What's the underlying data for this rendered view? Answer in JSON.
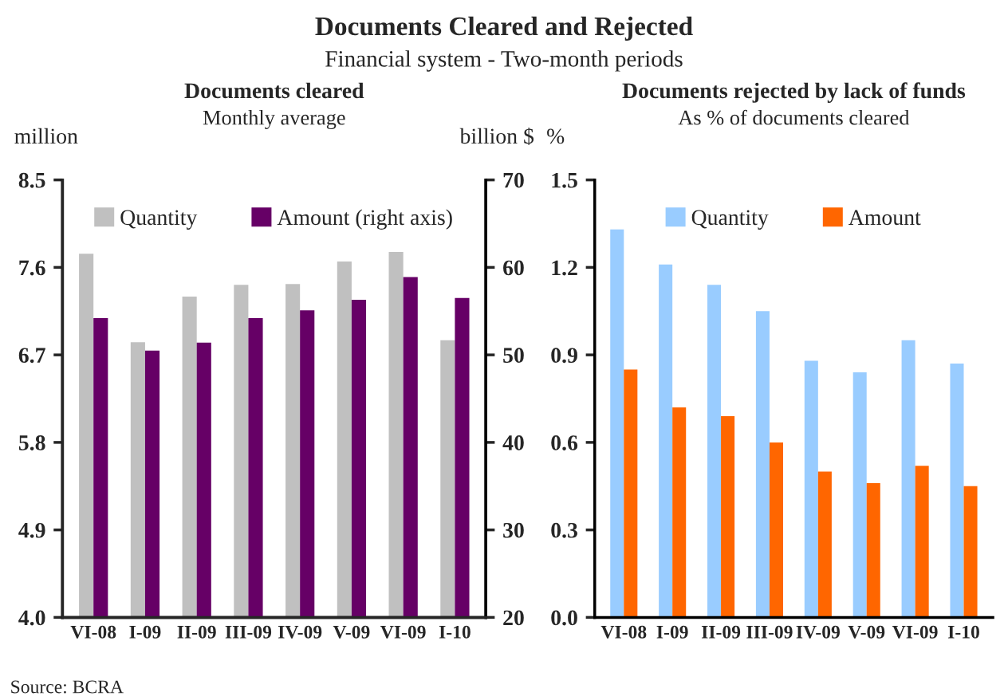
{
  "chart_data": [
    {
      "type": "bar",
      "title": "Documents cleared",
      "subtitle": "Monthly average",
      "ylabel": "million",
      "y2label": "billion $",
      "categories": [
        "VI-08",
        "I-09",
        "II-09",
        "III-09",
        "IV-09",
        "V-09",
        "VI-09",
        "I-10"
      ],
      "series": [
        {
          "name": "Quantity",
          "color": "#c0c0c0",
          "values": [
            7.74,
            6.83,
            7.3,
            7.42,
            7.43,
            7.66,
            7.76,
            6.85
          ]
        },
        {
          "name": "Amount (right axis)",
          "color": "#660066",
          "axis": "y2",
          "values": [
            54.2,
            50.5,
            51.4,
            54.2,
            55.1,
            56.3,
            58.9,
            56.5
          ]
        }
      ],
      "ylim": [
        4.0,
        8.5
      ],
      "yticks": [
        {
          "value": 4.0,
          "label": "4.0"
        },
        4.9,
        5.8,
        6.7,
        7.6,
        8.5
      ],
      "y2lim": [
        20,
        70
      ],
      "y2ticks": [
        20,
        30,
        40,
        50,
        60,
        70
      ],
      "grid": false,
      "legend": "top",
      "annotations": [
        "Documents Cleared and Rejected",
        "Financial system - Two-month periods",
        "Source: BCRA"
      ]
    },
    {
      "type": "bar",
      "title": "Documents rejected by lack of funds",
      "subtitle": "As % of documents cleared",
      "ylabel": "%",
      "categories": [
        "VI-08",
        "I-09",
        "II-09",
        "III-09",
        "IV-09",
        "V-09",
        "VI-09",
        "I-10"
      ],
      "series": [
        {
          "name": "Quantity",
          "color": "#99ccff",
          "values": [
            1.33,
            1.21,
            1.14,
            1.05,
            0.88,
            0.84,
            0.95,
            0.87
          ]
        },
        {
          "name": "Amount",
          "color": "#ff6600",
          "values": [
            0.85,
            0.72,
            0.69,
            0.6,
            0.5,
            0.46,
            0.52,
            0.45
          ]
        }
      ],
      "ylim": [
        0.0,
        1.5
      ],
      "yticks": [
        {
          "value": 0.0,
          "label": "0.0"
        },
        0.3,
        0.6,
        0.9,
        1.2,
        1.5
      ],
      "grid": false,
      "legend": "top"
    }
  ]
}
